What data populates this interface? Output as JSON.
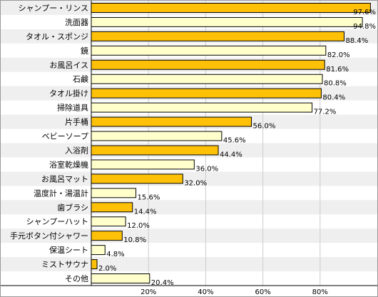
{
  "chart_data": {
    "type": "bar",
    "orientation": "horizontal",
    "title": "",
    "xlabel": "",
    "ylabel": "",
    "xlim": [
      0,
      100
    ],
    "grid": true,
    "legend": "none",
    "ticks": [
      "20%",
      "40%",
      "60%",
      "80%"
    ],
    "tick_values": [
      20,
      40,
      60,
      80
    ],
    "categories": [
      "シャンプー・リンス",
      "洗面器",
      "タオル・スポンジ",
      "鏡",
      "お風呂イス",
      "石鹸",
      "タオル掛け",
      "掃除道具",
      "片手桶",
      "ベビーソープ",
      "入浴剤",
      "浴室乾燥機",
      "お風呂マット",
      "温度計・湯温計",
      "歯ブラシ",
      "シャンプーハット",
      "手元ボタン付シャワー",
      "保温シート",
      "ミストサウナ",
      "その他"
    ],
    "values": [
      97.6,
      94.8,
      88.4,
      82.0,
      81.6,
      80.8,
      80.4,
      77.2,
      56.0,
      45.6,
      44.4,
      36.0,
      32.0,
      15.6,
      14.4,
      12.0,
      10.8,
      4.8,
      2.0,
      20.4
    ],
    "value_labels": [
      "97.6%",
      "94.8%",
      "88.4%",
      "82.0%",
      "81.6%",
      "80.8%",
      "80.4%",
      "77.2%",
      "56.0%",
      "45.6%",
      "44.4%",
      "36.0%",
      "32.0%",
      "15.6%",
      "14.4%",
      "12.0%",
      "10.8%",
      "4.8%",
      "2.0%",
      "20.4%"
    ],
    "highlighted": [
      true,
      false,
      true,
      false,
      true,
      false,
      true,
      false,
      true,
      false,
      true,
      false,
      true,
      false,
      true,
      false,
      true,
      false,
      true,
      false
    ],
    "colors": {
      "highlight": "#FFC107",
      "normal": "#FFFFCC",
      "stroke": "#000000",
      "row_alt": "#EFEFEF",
      "grid": "#CCCCCC",
      "frame": "#999999"
    }
  }
}
